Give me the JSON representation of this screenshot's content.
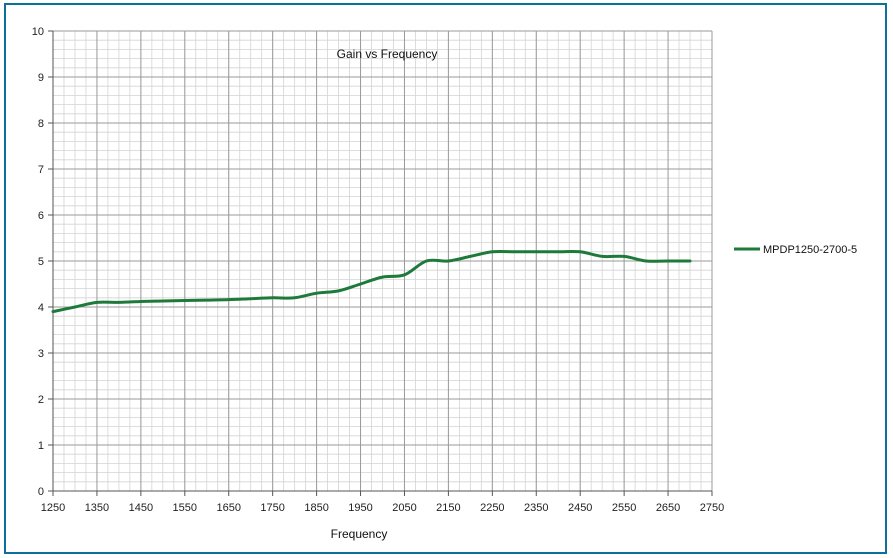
{
  "chart_data": {
    "type": "line",
    "title": "Gain vs Frequency",
    "xlabel": "Frequency",
    "ylabel": "",
    "xlim": [
      1250,
      2750
    ],
    "ylim": [
      0,
      10
    ],
    "x_major_ticks": [
      "1250",
      "1350",
      "1450",
      "1550",
      "1650",
      "1750",
      "1850",
      "1950",
      "2050",
      "2150",
      "2250",
      "2350",
      "2450",
      "2550",
      "2650",
      "2750"
    ],
    "y_major_ticks": [
      "0",
      "1",
      "2",
      "3",
      "4",
      "5",
      "6",
      "7",
      "8",
      "9",
      "10"
    ],
    "grid": true,
    "legend_position": "right",
    "series": [
      {
        "name": "MPDP1250-2700-5",
        "color": "#1e7a3a",
        "x": [
          1250,
          1300,
          1350,
          1400,
          1450,
          1500,
          1550,
          1600,
          1650,
          1700,
          1750,
          1800,
          1850,
          1900,
          1950,
          2000,
          2050,
          2100,
          2150,
          2200,
          2250,
          2300,
          2350,
          2400,
          2450,
          2500,
          2550,
          2600,
          2650,
          2700
        ],
        "y": [
          3.9,
          4.0,
          4.1,
          4.1,
          4.12,
          4.13,
          4.14,
          4.15,
          4.16,
          4.18,
          4.2,
          4.2,
          4.3,
          4.35,
          4.5,
          4.65,
          4.7,
          5.0,
          5.0,
          5.1,
          5.2,
          5.2,
          5.2,
          5.2,
          5.2,
          5.1,
          5.1,
          5.0,
          5.0,
          5.0
        ]
      }
    ]
  }
}
